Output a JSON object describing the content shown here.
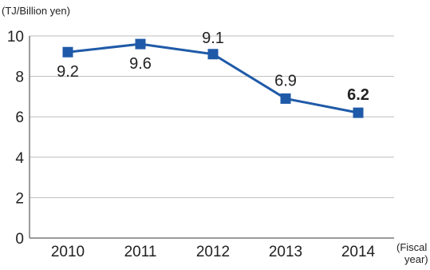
{
  "chart_data": {
    "type": "line",
    "ylabel": "(TJ/Billion yen)",
    "xlabel_line1": "(Fiscal",
    "xlabel_line2": "year)",
    "categories": [
      "2010",
      "2011",
      "2012",
      "2013",
      "2014"
    ],
    "y_ticks": [
      "0",
      "2",
      "4",
      "6",
      "8",
      "10"
    ],
    "ylim": [
      0,
      10
    ],
    "grid": true,
    "series": [
      {
        "values": [
          9.2,
          9.6,
          9.1,
          6.9,
          6.2
        ],
        "data_labels": [
          "9.2",
          "9.6",
          "9.1",
          "6.9",
          "6.2"
        ],
        "color": "#1f5aa8",
        "marker": "square"
      }
    ],
    "bold_labels": [
      4
    ]
  }
}
